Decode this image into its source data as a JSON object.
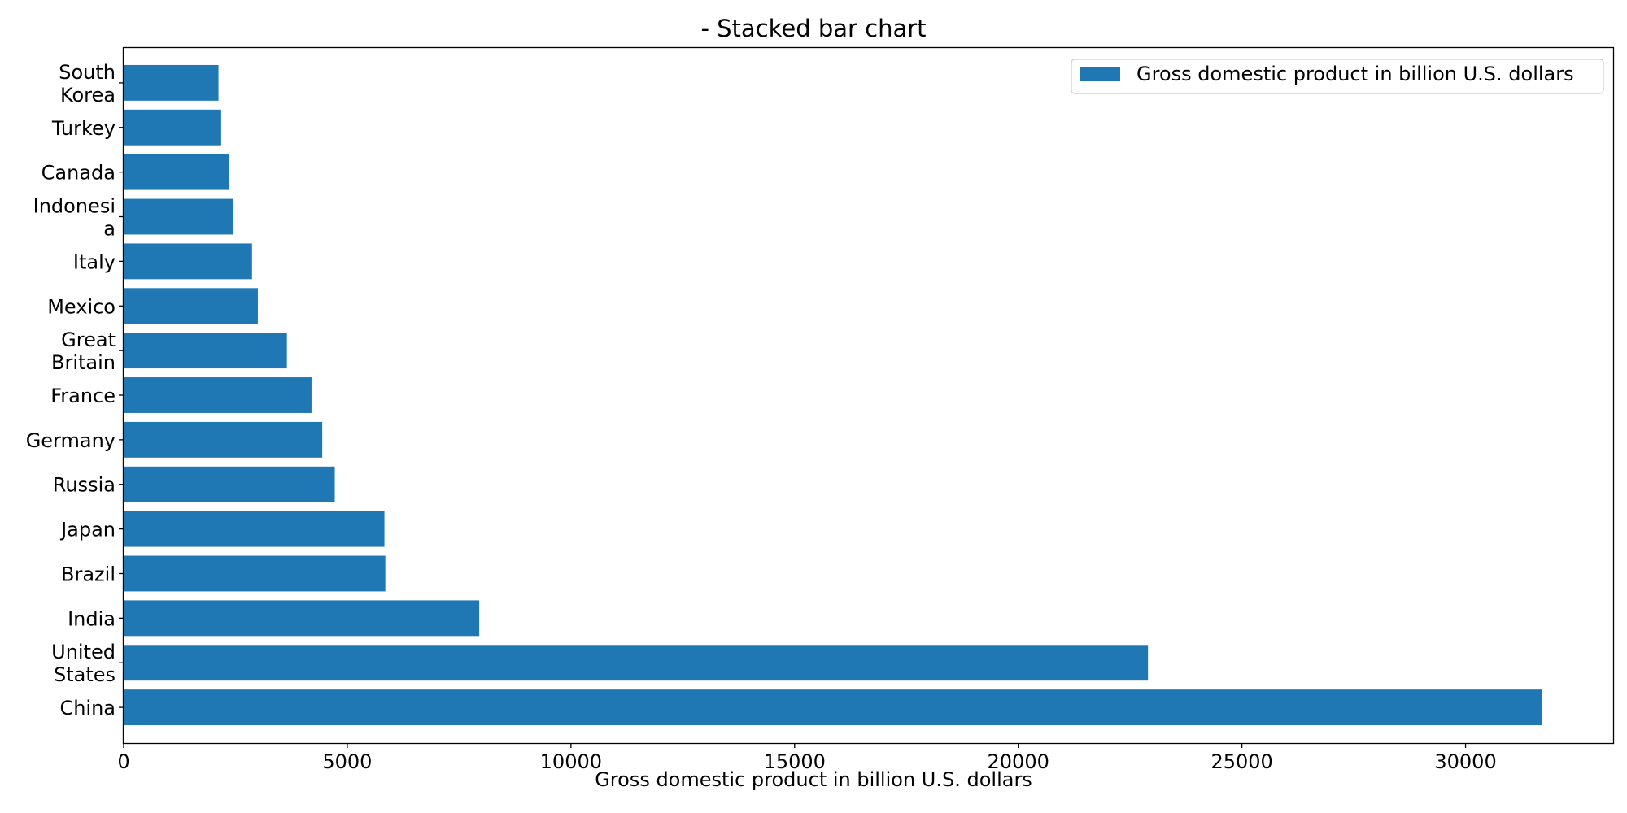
{
  "chart_data": {
    "type": "bar",
    "orientation": "horizontal",
    "title": "- Stacked bar chart",
    "xlabel": "Gross domestic product in billion U.S. dollars",
    "ylabel": "",
    "xlim": [
      0,
      33300
    ],
    "xticks": [
      0,
      5000,
      10000,
      15000,
      20000,
      25000,
      30000
    ],
    "grid": false,
    "legend_position": "top-right",
    "categories": [
      [
        "China"
      ],
      [
        "United",
        "States"
      ],
      [
        "India"
      ],
      [
        "Brazil"
      ],
      [
        "Japan"
      ],
      [
        "Russia"
      ],
      [
        "Germany"
      ],
      [
        "France"
      ],
      [
        "Great",
        "Britain"
      ],
      [
        "Mexico"
      ],
      [
        "Italy"
      ],
      [
        "Indonesi",
        "a"
      ],
      [
        "Canada"
      ],
      [
        "Turkey"
      ],
      [
        "South",
        "Korea"
      ]
    ],
    "series": [
      {
        "name": "Gross domestic product in billion U.S. dollars",
        "color": "#1f77b4",
        "values": [
          31700,
          22900,
          7950,
          5850,
          5830,
          4720,
          4440,
          4200,
          3650,
          3000,
          2870,
          2450,
          2360,
          2180,
          2120
        ]
      }
    ]
  }
}
